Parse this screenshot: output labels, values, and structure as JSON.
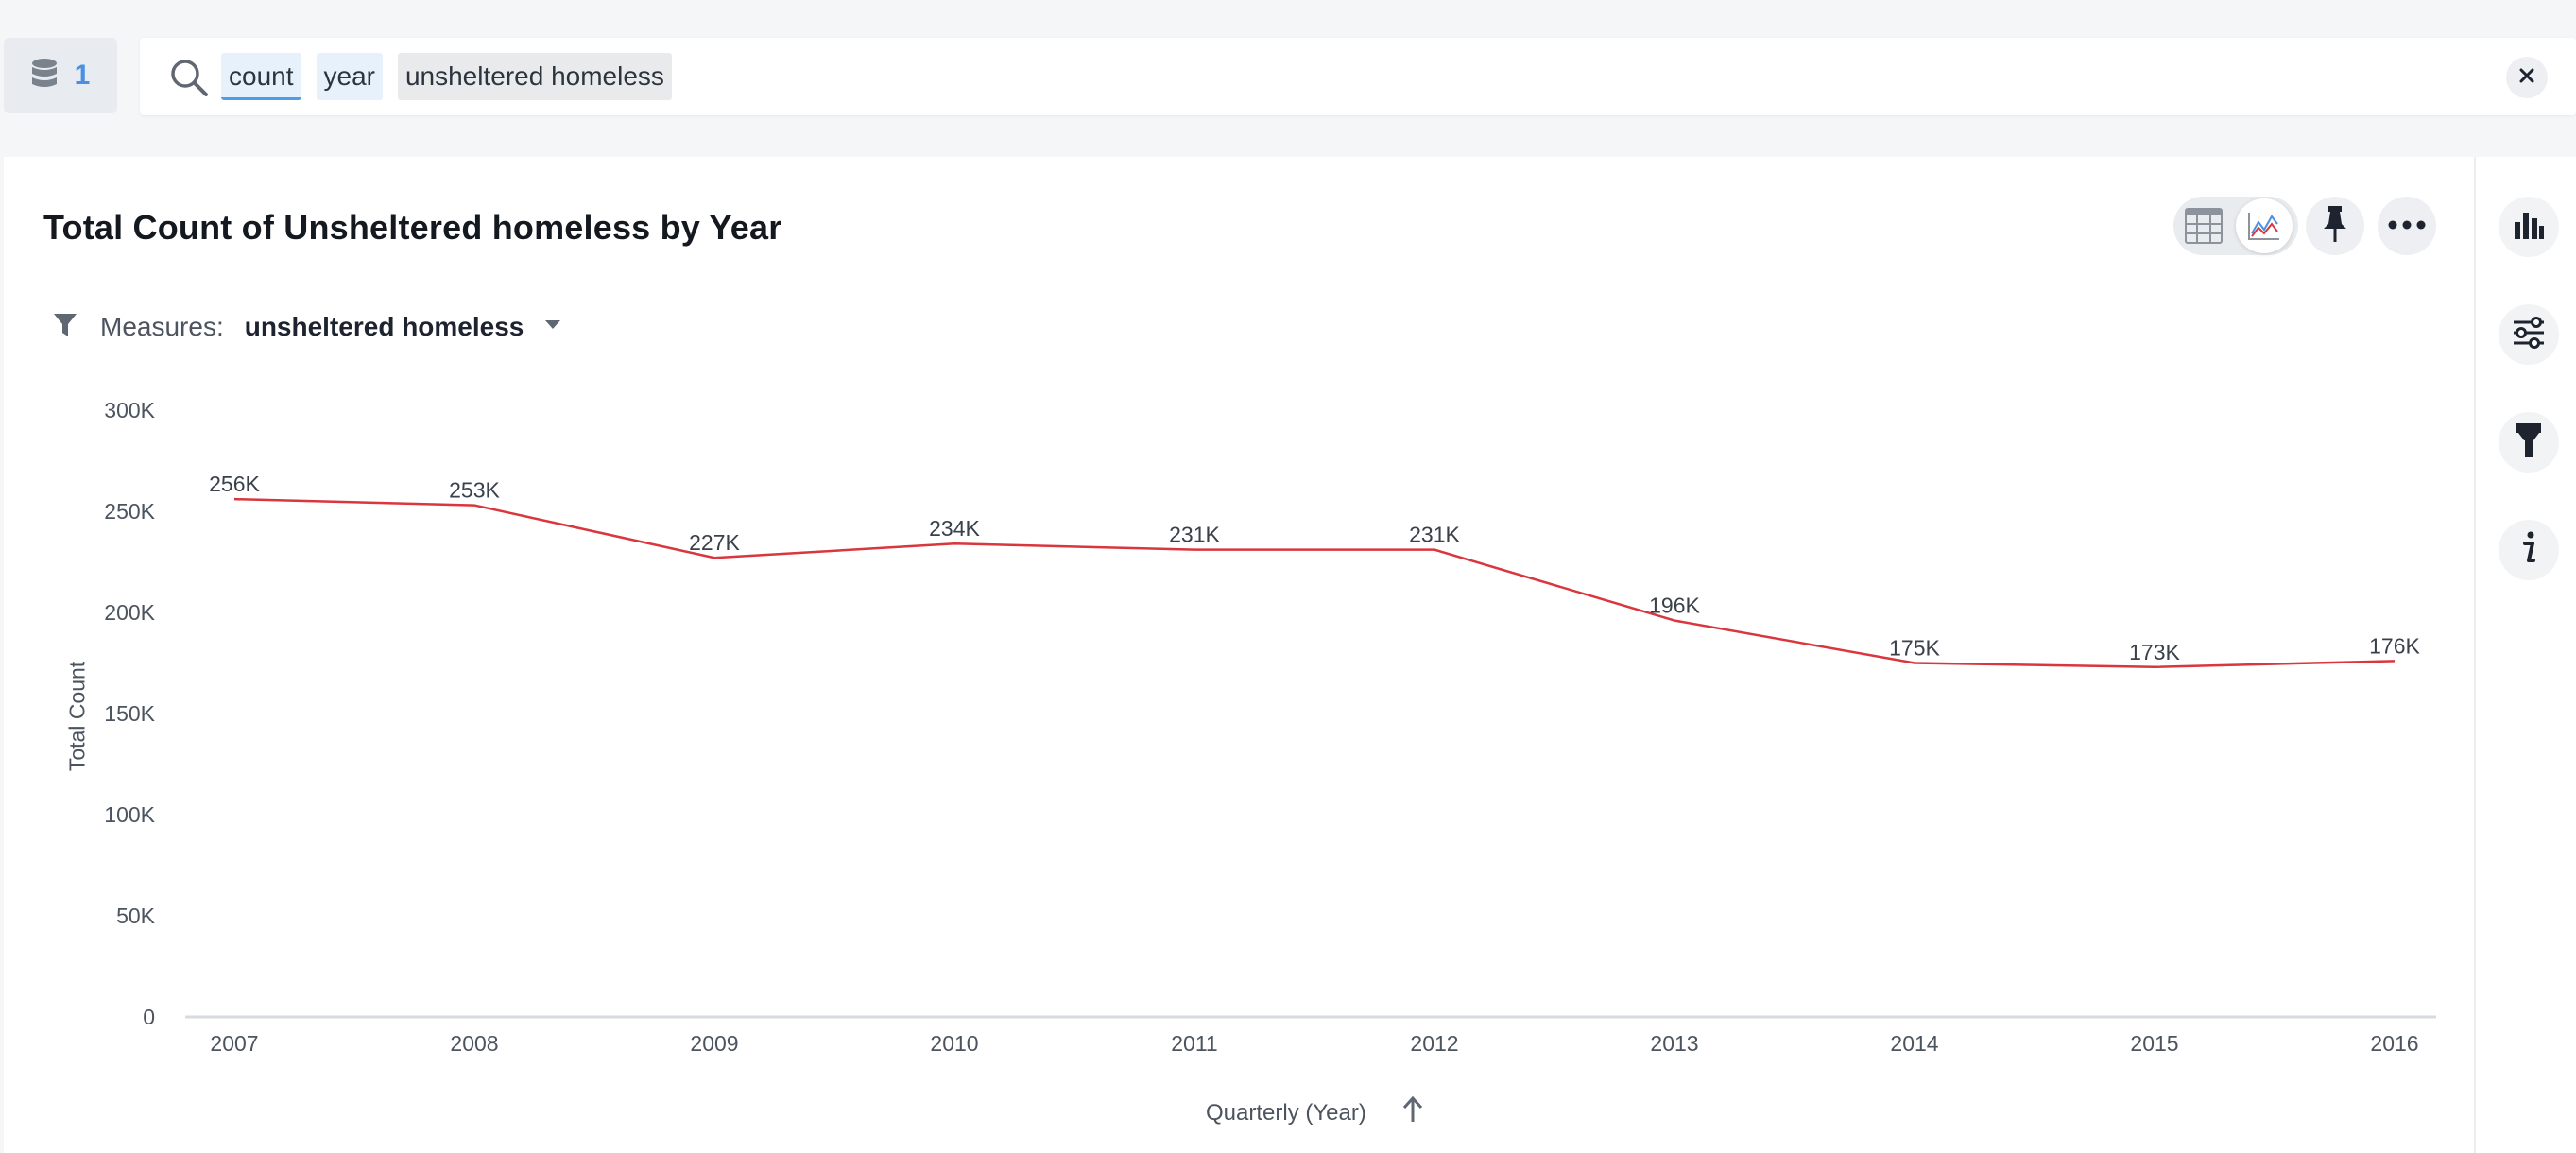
{
  "source": {
    "count": "1",
    "icon": "database-icon"
  },
  "search": {
    "tokens": [
      "count",
      "year",
      "unsheltered homeless"
    ],
    "clear_icon": "close-icon"
  },
  "card": {
    "title": "Total Count of Unsheltered homeless by Year",
    "measures_label": "Measures:",
    "measures_value": "unsheltered homeless"
  },
  "toolbar": {
    "table_view_icon": "table-icon",
    "chart_view_icon": "line-chart-icon",
    "pin_icon": "pin-icon",
    "more_icon": "more-icon"
  },
  "rail": {
    "icons": [
      "bar-chart-icon",
      "settings-sliders-icon",
      "format-brush-icon",
      "info-icon"
    ]
  },
  "chart_data": {
    "type": "line",
    "x": [
      "2007",
      "2008",
      "2009",
      "2010",
      "2011",
      "2012",
      "2013",
      "2014",
      "2015",
      "2016"
    ],
    "series": [
      {
        "values": [
          256000,
          253000,
          227000,
          234000,
          231000,
          231000,
          196000,
          175000,
          173000,
          176000
        ]
      }
    ],
    "data_labels": [
      "256K",
      "253K",
      "227K",
      "234K",
      "231K",
      "231K",
      "196K",
      "175K",
      "173K",
      "176K"
    ],
    "ylim": [
      0,
      300000
    ],
    "yticks": [
      0,
      50000,
      100000,
      150000,
      200000,
      250000,
      300000
    ],
    "ytick_labels": [
      "0",
      "50K",
      "100K",
      "150K",
      "200K",
      "250K",
      "300K"
    ],
    "xlabel": "Quarterly (Year)",
    "ylabel": "Total Count",
    "line_color": "#d9363e",
    "grid": false
  }
}
